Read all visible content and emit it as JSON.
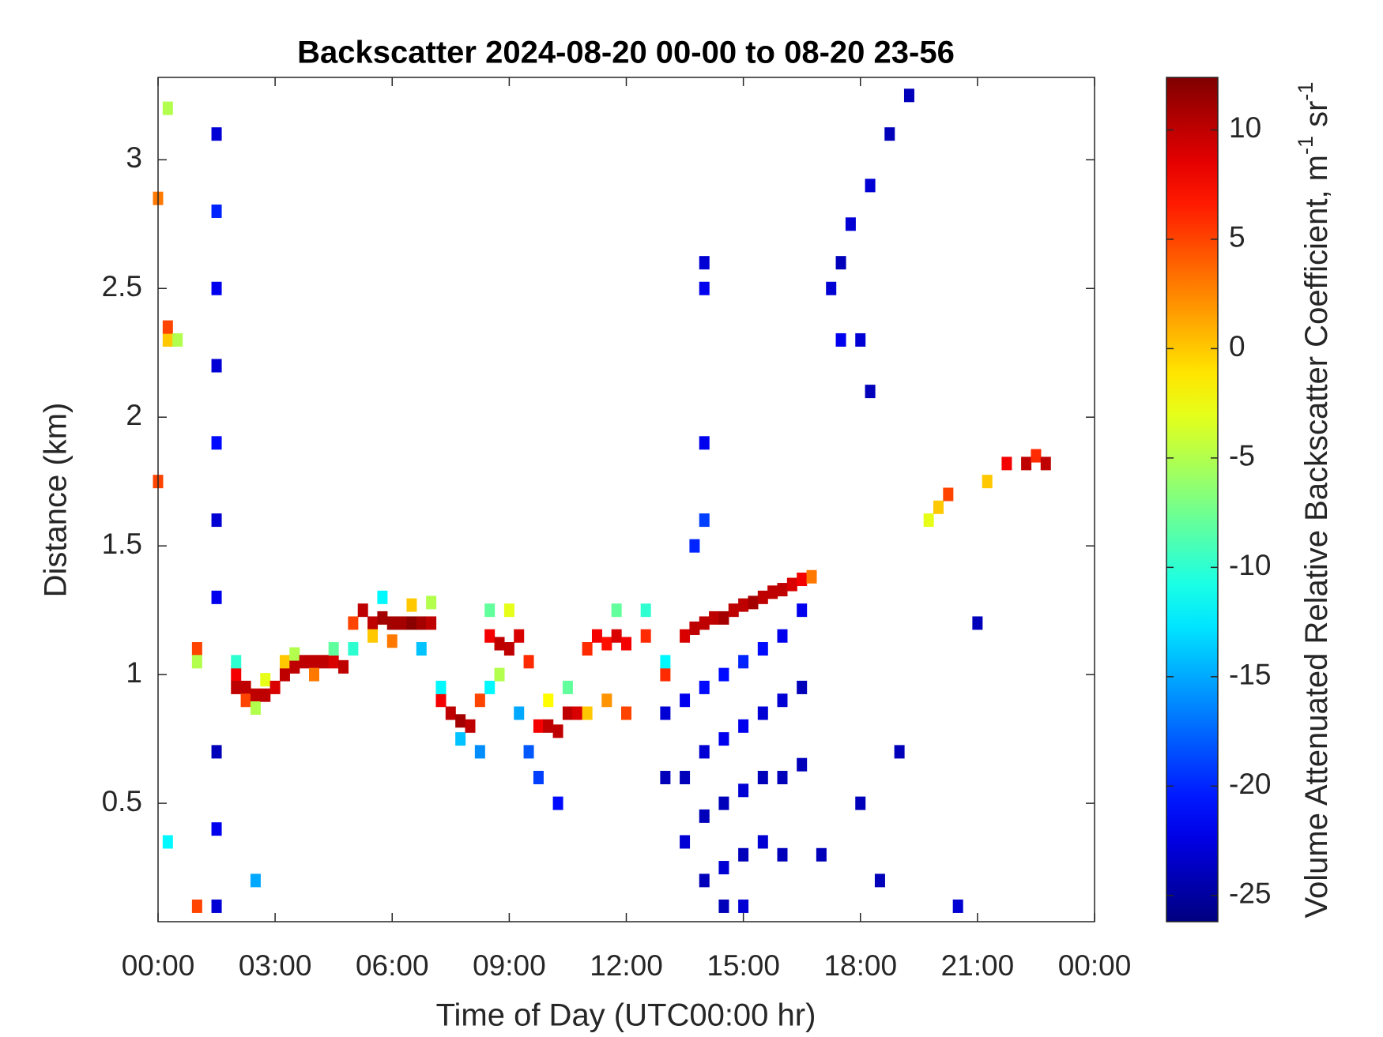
{
  "chart_data": {
    "type": "heatmap",
    "title": "Backscatter 2024-08-20 00-00 to 08-20 23-56",
    "x_label": "Time of Day (UTC00:00 hr)",
    "y_label": "Distance (km)",
    "colorbar_label": [
      "Volume Attenuated Relative Backscatter Coefficient, m",
      "-1",
      " sr",
      "-1"
    ],
    "colormap": "jet",
    "xlim": [
      0,
      24
    ],
    "xticks": [
      {
        "value": 0,
        "label": "00:00"
      },
      {
        "value": 3,
        "label": "03:00"
      },
      {
        "value": 6,
        "label": "06:00"
      },
      {
        "value": 9,
        "label": "09:00"
      },
      {
        "value": 12,
        "label": "12:00"
      },
      {
        "value": 15,
        "label": "15:00"
      },
      {
        "value": 18,
        "label": "18:00"
      },
      {
        "value": 21,
        "label": "21:00"
      },
      {
        "value": 24,
        "label": "00:00"
      }
    ],
    "ylim": [
      0.04,
      3.32
    ],
    "yticks": [
      0.5,
      1,
      1.5,
      2,
      2.5,
      3
    ],
    "clim": [
      -26.2,
      12.4
    ],
    "cticks": [
      -25,
      -20,
      -15,
      -10,
      -5,
      0,
      5,
      10
    ],
    "points": [
      {
        "x": 0,
        "y": 1.75,
        "value": 5
      },
      {
        "x": 0,
        "y": 2.85,
        "value": 3
      },
      {
        "x": 0.25,
        "y": 2.3,
        "value": 0
      },
      {
        "x": 0.25,
        "y": 2.35,
        "value": 5
      },
      {
        "x": 0.5,
        "y": 2.3,
        "value": -5
      },
      {
        "x": 0.25,
        "y": 3.2,
        "value": -5
      },
      {
        "x": 0.25,
        "y": 0.35,
        "value": -12
      },
      {
        "x": 1,
        "y": 0.1,
        "value": 5
      },
      {
        "x": 2.5,
        "y": 0.2,
        "value": -15
      },
      {
        "x": 1,
        "y": 1.1,
        "value": 5
      },
      {
        "x": 1,
        "y": 1.05,
        "value": -5
      },
      {
        "x": 2,
        "y": 1,
        "value": 8
      },
      {
        "x": 2,
        "y": 0.95,
        "value": 10
      },
      {
        "x": 2,
        "y": 1.05,
        "value": -10
      },
      {
        "x": 2.25,
        "y": 0.95,
        "value": 10
      },
      {
        "x": 2.25,
        "y": 0.9,
        "value": 5
      },
      {
        "x": 2.5,
        "y": 0.92,
        "value": 10
      },
      {
        "x": 2.5,
        "y": 0.87,
        "value": -5
      },
      {
        "x": 2.75,
        "y": 0.92,
        "value": 10
      },
      {
        "x": 2.75,
        "y": 0.98,
        "value": -3
      },
      {
        "x": 3,
        "y": 0.95,
        "value": 9
      },
      {
        "x": 3.25,
        "y": 1,
        "value": 10
      },
      {
        "x": 3.25,
        "y": 1.05,
        "value": 0
      },
      {
        "x": 3.5,
        "y": 1.03,
        "value": 10
      },
      {
        "x": 3.5,
        "y": 1.08,
        "value": -5
      },
      {
        "x": 3.75,
        "y": 1.05,
        "value": 10
      },
      {
        "x": 4,
        "y": 1.05,
        "value": 10
      },
      {
        "x": 4,
        "y": 1,
        "value": 3
      },
      {
        "x": 4.25,
        "y": 1.05,
        "value": 10
      },
      {
        "x": 4.5,
        "y": 1.05,
        "value": 9
      },
      {
        "x": 4.5,
        "y": 1.1,
        "value": -8
      },
      {
        "x": 4.75,
        "y": 1.03,
        "value": 10
      },
      {
        "x": 5,
        "y": 1.2,
        "value": 5
      },
      {
        "x": 5,
        "y": 1.1,
        "value": -10
      },
      {
        "x": 5.25,
        "y": 1.25,
        "value": 10
      },
      {
        "x": 5.5,
        "y": 1.2,
        "value": 10
      },
      {
        "x": 5.5,
        "y": 1.15,
        "value": 0
      },
      {
        "x": 5.75,
        "y": 1.22,
        "value": 11
      },
      {
        "x": 5.75,
        "y": 1.3,
        "value": -12
      },
      {
        "x": 6,
        "y": 1.2,
        "value": 11
      },
      {
        "x": 6,
        "y": 1.13,
        "value": 3
      },
      {
        "x": 6.25,
        "y": 1.2,
        "value": 11
      },
      {
        "x": 6.5,
        "y": 1.2,
        "value": 12
      },
      {
        "x": 6.5,
        "y": 1.27,
        "value": 0
      },
      {
        "x": 6.75,
        "y": 1.2,
        "value": 11
      },
      {
        "x": 6.75,
        "y": 1.1,
        "value": -14
      },
      {
        "x": 7,
        "y": 1.2,
        "value": 10
      },
      {
        "x": 7,
        "y": 1.28,
        "value": -5
      },
      {
        "x": 7.25,
        "y": 0.9,
        "value": 8
      },
      {
        "x": 7.25,
        "y": 0.95,
        "value": -12
      },
      {
        "x": 7.5,
        "y": 0.85,
        "value": 10
      },
      {
        "x": 7.75,
        "y": 0.82,
        "value": 11
      },
      {
        "x": 7.75,
        "y": 0.75,
        "value": -14
      },
      {
        "x": 8,
        "y": 0.8,
        "value": 10
      },
      {
        "x": 8.25,
        "y": 0.9,
        "value": 5
      },
      {
        "x": 8.25,
        "y": 0.7,
        "value": -16
      },
      {
        "x": 8.5,
        "y": 1.15,
        "value": 8
      },
      {
        "x": 8.5,
        "y": 1.25,
        "value": -8
      },
      {
        "x": 8.5,
        "y": 0.95,
        "value": -12
      },
      {
        "x": 8.75,
        "y": 1.12,
        "value": 10
      },
      {
        "x": 8.75,
        "y": 1,
        "value": -5
      },
      {
        "x": 9,
        "y": 1.1,
        "value": 10
      },
      {
        "x": 9,
        "y": 1.25,
        "value": -3
      },
      {
        "x": 9.25,
        "y": 1.15,
        "value": 9
      },
      {
        "x": 9.25,
        "y": 0.85,
        "value": -15
      },
      {
        "x": 9.5,
        "y": 1.05,
        "value": 6
      },
      {
        "x": 9.5,
        "y": 0.7,
        "value": -18
      },
      {
        "x": 9.75,
        "y": 0.8,
        "value": 8
      },
      {
        "x": 9.75,
        "y": 0.6,
        "value": -19
      },
      {
        "x": 10,
        "y": 0.8,
        "value": 10
      },
      {
        "x": 10,
        "y": 0.9,
        "value": -2
      },
      {
        "x": 10.25,
        "y": 0.78,
        "value": 10
      },
      {
        "x": 10.25,
        "y": 0.5,
        "value": -21
      },
      {
        "x": 10.5,
        "y": 0.85,
        "value": 10
      },
      {
        "x": 10.5,
        "y": 0.95,
        "value": -8
      },
      {
        "x": 10.75,
        "y": 0.85,
        "value": 9
      },
      {
        "x": 11,
        "y": 1.1,
        "value": 6
      },
      {
        "x": 11,
        "y": 0.85,
        "value": 0
      },
      {
        "x": 11.25,
        "y": 1.15,
        "value": 8
      },
      {
        "x": 11.5,
        "y": 1.12,
        "value": 7
      },
      {
        "x": 11.5,
        "y": 0.9,
        "value": 2
      },
      {
        "x": 11.75,
        "y": 1.15,
        "value": 9
      },
      {
        "x": 11.75,
        "y": 1.25,
        "value": -8
      },
      {
        "x": 12,
        "y": 1.12,
        "value": 8
      },
      {
        "x": 12,
        "y": 0.85,
        "value": 5
      },
      {
        "x": 12.5,
        "y": 1.15,
        "value": 6
      },
      {
        "x": 12.5,
        "y": 1.25,
        "value": -10
      },
      {
        "x": 13,
        "y": 1,
        "value": 6
      },
      {
        "x": 13,
        "y": 1.05,
        "value": -12
      },
      {
        "x": 13.5,
        "y": 1.15,
        "value": 9
      },
      {
        "x": 13.75,
        "y": 1.18,
        "value": 10
      },
      {
        "x": 14,
        "y": 1.2,
        "value": 10
      },
      {
        "x": 14.25,
        "y": 1.22,
        "value": 10
      },
      {
        "x": 14.5,
        "y": 1.22,
        "value": 11
      },
      {
        "x": 14.75,
        "y": 1.25,
        "value": 10
      },
      {
        "x": 15,
        "y": 1.27,
        "value": 10
      },
      {
        "x": 15.25,
        "y": 1.28,
        "value": 11
      },
      {
        "x": 15.5,
        "y": 1.3,
        "value": 10
      },
      {
        "x": 15.75,
        "y": 1.32,
        "value": 10
      },
      {
        "x": 16,
        "y": 1.33,
        "value": 10
      },
      {
        "x": 16.25,
        "y": 1.35,
        "value": 9
      },
      {
        "x": 16.5,
        "y": 1.37,
        "value": 8
      },
      {
        "x": 16.75,
        "y": 1.38,
        "value": 3
      },
      {
        "x": 19.75,
        "y": 1.6,
        "value": -3
      },
      {
        "x": 20,
        "y": 1.65,
        "value": 0
      },
      {
        "x": 20.25,
        "y": 1.7,
        "value": 5
      },
      {
        "x": 21.25,
        "y": 1.75,
        "value": 0
      },
      {
        "x": 21.75,
        "y": 1.82,
        "value": 8
      },
      {
        "x": 22.25,
        "y": 1.82,
        "value": 10
      },
      {
        "x": 22.5,
        "y": 1.85,
        "value": 6
      },
      {
        "x": 22.75,
        "y": 1.82,
        "value": 10
      },
      {
        "x": 1.5,
        "y": 0.1,
        "value": -23
      },
      {
        "x": 1.5,
        "y": 0.4,
        "value": -22
      },
      {
        "x": 1.5,
        "y": 0.7,
        "value": -24
      },
      {
        "x": 1.5,
        "y": 1.3,
        "value": -22
      },
      {
        "x": 1.5,
        "y": 1.6,
        "value": -23
      },
      {
        "x": 1.5,
        "y": 1.9,
        "value": -21
      },
      {
        "x": 1.5,
        "y": 2.2,
        "value": -23
      },
      {
        "x": 1.5,
        "y": 2.5,
        "value": -22
      },
      {
        "x": 1.5,
        "y": 2.8,
        "value": -20
      },
      {
        "x": 1.5,
        "y": 3.1,
        "value": -23
      },
      {
        "x": 13,
        "y": 0.85,
        "value": -23
      },
      {
        "x": 13,
        "y": 0.6,
        "value": -24
      },
      {
        "x": 13.5,
        "y": 0.9,
        "value": -22
      },
      {
        "x": 13.5,
        "y": 0.6,
        "value": -24
      },
      {
        "x": 13.5,
        "y": 0.35,
        "value": -23
      },
      {
        "x": 14,
        "y": 0.95,
        "value": -21
      },
      {
        "x": 14,
        "y": 0.7,
        "value": -23
      },
      {
        "x": 14,
        "y": 0.45,
        "value": -24
      },
      {
        "x": 14,
        "y": 0.2,
        "value": -24
      },
      {
        "x": 14.5,
        "y": 1,
        "value": -21
      },
      {
        "x": 14.5,
        "y": 0.75,
        "value": -22
      },
      {
        "x": 14.5,
        "y": 0.5,
        "value": -24
      },
      {
        "x": 14.5,
        "y": 0.25,
        "value": -23
      },
      {
        "x": 14.5,
        "y": 0.1,
        "value": -24
      },
      {
        "x": 15,
        "y": 1.05,
        "value": -20
      },
      {
        "x": 15,
        "y": 0.8,
        "value": -22
      },
      {
        "x": 15,
        "y": 0.55,
        "value": -23
      },
      {
        "x": 15,
        "y": 0.3,
        "value": -24
      },
      {
        "x": 15,
        "y": 0.1,
        "value": -23
      },
      {
        "x": 15.5,
        "y": 1.1,
        "value": -21
      },
      {
        "x": 15.5,
        "y": 0.85,
        "value": -23
      },
      {
        "x": 15.5,
        "y": 0.6,
        "value": -24
      },
      {
        "x": 15.5,
        "y": 0.35,
        "value": -23
      },
      {
        "x": 16,
        "y": 1.15,
        "value": -22
      },
      {
        "x": 16,
        "y": 0.9,
        "value": -23
      },
      {
        "x": 16,
        "y": 0.6,
        "value": -24
      },
      {
        "x": 16,
        "y": 0.3,
        "value": -24
      },
      {
        "x": 16.5,
        "y": 1.25,
        "value": -22
      },
      {
        "x": 16.5,
        "y": 0.95,
        "value": -24
      },
      {
        "x": 16.5,
        "y": 0.65,
        "value": -24
      },
      {
        "x": 17,
        "y": 0.3,
        "value": -24
      },
      {
        "x": 18,
        "y": 0.5,
        "value": -24
      },
      {
        "x": 18.5,
        "y": 0.2,
        "value": -24
      },
      {
        "x": 19,
        "y": 0.7,
        "value": -24
      },
      {
        "x": 20.5,
        "y": 0.1,
        "value": -23
      },
      {
        "x": 21,
        "y": 1.2,
        "value": -24
      },
      {
        "x": 14,
        "y": 2.5,
        "value": -22
      },
      {
        "x": 14,
        "y": 2.6,
        "value": -23
      },
      {
        "x": 13.75,
        "y": 1.5,
        "value": -20
      },
      {
        "x": 14,
        "y": 1.6,
        "value": -19
      },
      {
        "x": 14,
        "y": 1.9,
        "value": -22
      },
      {
        "x": 17.25,
        "y": 2.5,
        "value": -23
      },
      {
        "x": 17.5,
        "y": 2.6,
        "value": -24
      },
      {
        "x": 17.75,
        "y": 2.75,
        "value": -23
      },
      {
        "x": 17.5,
        "y": 2.3,
        "value": -22
      },
      {
        "x": 18,
        "y": 2.3,
        "value": -23
      },
      {
        "x": 18.25,
        "y": 2.1,
        "value": -24
      },
      {
        "x": 18.25,
        "y": 2.9,
        "value": -23
      },
      {
        "x": 18.75,
        "y": 3.1,
        "value": -24
      },
      {
        "x": 19.25,
        "y": 3.25,
        "value": -24
      }
    ]
  }
}
